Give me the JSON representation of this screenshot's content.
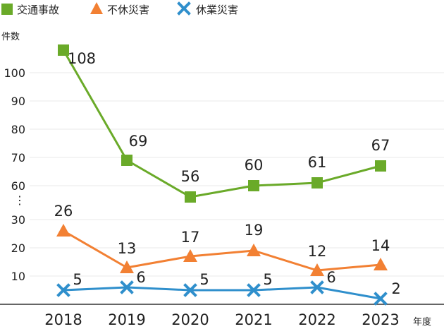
{
  "chart_data": {
    "type": "line",
    "title": "",
    "xlabel": "年度",
    "ylabel": "件数",
    "categories": [
      "2018",
      "2019",
      "2020",
      "2021",
      "2022",
      "2023"
    ],
    "y_ticks": [
      "100",
      "90",
      "80",
      "70",
      "60",
      "⋮",
      "30",
      "20",
      "10"
    ],
    "axis_break": {
      "from": 30,
      "to": 60
    },
    "grid": true,
    "legend_position": "top-left",
    "series": [
      {
        "name": "交通事故",
        "marker": "square",
        "color": "#6aaa29",
        "values": [
          108,
          69,
          56,
          60,
          61,
          67
        ]
      },
      {
        "name": "不休災害",
        "marker": "triangle",
        "color": "#f28033",
        "values": [
          26,
          13,
          17,
          19,
          12,
          14
        ]
      },
      {
        "name": "休業災害",
        "marker": "cross",
        "color": "#2f8fcc",
        "values": [
          5,
          6,
          5,
          5,
          6,
          2
        ]
      }
    ]
  }
}
